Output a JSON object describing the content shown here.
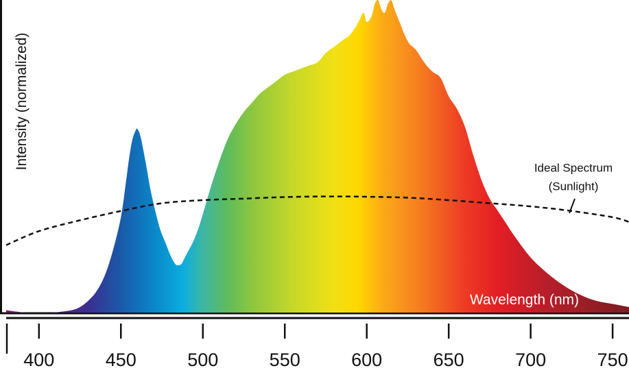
{
  "chart_data": {
    "type": "area",
    "ylabel": "Intensity (normalized)",
    "xlabel": "Wavelength (nm)",
    "xlim": [
      380,
      760
    ],
    "ylim": [
      0,
      1
    ],
    "xticks": [
      400,
      450,
      500,
      550,
      600,
      650,
      700,
      750
    ],
    "grid": false,
    "series": [
      {
        "x": [
          380,
          390,
          400,
          410,
          420,
          425,
          430,
          435,
          440,
          445,
          450,
          453,
          455,
          457,
          459,
          460,
          462,
          465,
          468,
          471,
          474,
          477,
          480,
          483,
          485,
          487,
          489,
          491,
          494,
          497,
          500,
          505,
          510,
          515,
          520,
          525,
          530,
          535,
          540,
          545,
          550,
          555,
          560,
          565,
          570,
          575,
          580,
          585,
          590,
          595,
          598,
          600,
          603,
          605,
          607,
          609,
          611,
          613,
          615,
          617,
          620,
          623,
          626,
          630,
          635,
          640,
          645,
          650,
          655,
          660,
          665,
          670,
          675,
          680,
          685,
          690,
          700,
          710,
          720,
          730,
          740,
          750,
          760
        ],
        "y": [
          0.01,
          0.003,
          0.0,
          0.003,
          0.01,
          0.02,
          0.04,
          0.07,
          0.12,
          0.2,
          0.31,
          0.42,
          0.5,
          0.56,
          0.59,
          0.595,
          0.57,
          0.49,
          0.4,
          0.33,
          0.27,
          0.23,
          0.19,
          0.16,
          0.155,
          0.16,
          0.18,
          0.2,
          0.23,
          0.27,
          0.32,
          0.41,
          0.49,
          0.56,
          0.61,
          0.65,
          0.68,
          0.71,
          0.73,
          0.75,
          0.77,
          0.78,
          0.79,
          0.8,
          0.81,
          0.84,
          0.86,
          0.88,
          0.9,
          0.94,
          0.97,
          0.94,
          0.96,
          1.0,
          1.01,
          0.98,
          0.97,
          1.0,
          1.01,
          0.98,
          0.94,
          0.9,
          0.87,
          0.85,
          0.81,
          0.78,
          0.76,
          0.7,
          0.66,
          0.6,
          0.51,
          0.43,
          0.37,
          0.33,
          0.29,
          0.25,
          0.18,
          0.13,
          0.09,
          0.06,
          0.04,
          0.03,
          0.02
        ]
      },
      {
        "name": "Ideal Spectrum (Sunlight)",
        "x": [
          380,
          400,
          425,
          450,
          475,
          500,
          525,
          550,
          575,
          600,
          625,
          650,
          675,
          700,
          725,
          750,
          760
        ],
        "y": [
          0.22,
          0.265,
          0.3,
          0.33,
          0.355,
          0.365,
          0.37,
          0.375,
          0.377,
          0.376,
          0.373,
          0.365,
          0.355,
          0.345,
          0.33,
          0.31,
          0.295
        ]
      }
    ],
    "annotations": [
      {
        "text": "Ideal Spectrum",
        "x": 730,
        "y": 0.47
      },
      {
        "text": "(Sunlight)",
        "x": 730,
        "y": 0.41
      }
    ],
    "colors": {
      "spectrum_stops": [
        {
          "nm": 380,
          "color": "#7d1a6e"
        },
        {
          "nm": 430,
          "color": "#3a2f8f"
        },
        {
          "nm": 450,
          "color": "#1a5aa8"
        },
        {
          "nm": 470,
          "color": "#0a86c9"
        },
        {
          "nm": 488,
          "color": "#0aaede"
        },
        {
          "nm": 500,
          "color": "#3fb6a4"
        },
        {
          "nm": 515,
          "color": "#5fbb5c"
        },
        {
          "nm": 530,
          "color": "#8dc63f"
        },
        {
          "nm": 555,
          "color": "#c6d82a"
        },
        {
          "nm": 580,
          "color": "#f1e015"
        },
        {
          "nm": 595,
          "color": "#ffd700"
        },
        {
          "nm": 610,
          "color": "#fbaa17"
        },
        {
          "nm": 630,
          "color": "#f68220"
        },
        {
          "nm": 660,
          "color": "#ed3a24"
        },
        {
          "nm": 680,
          "color": "#e31e24"
        },
        {
          "nm": 710,
          "color": "#b61e2a"
        },
        {
          "nm": 760,
          "color": "#7a1d22"
        }
      ],
      "ideal_line": "#111111",
      "axis": "#111111"
    }
  }
}
